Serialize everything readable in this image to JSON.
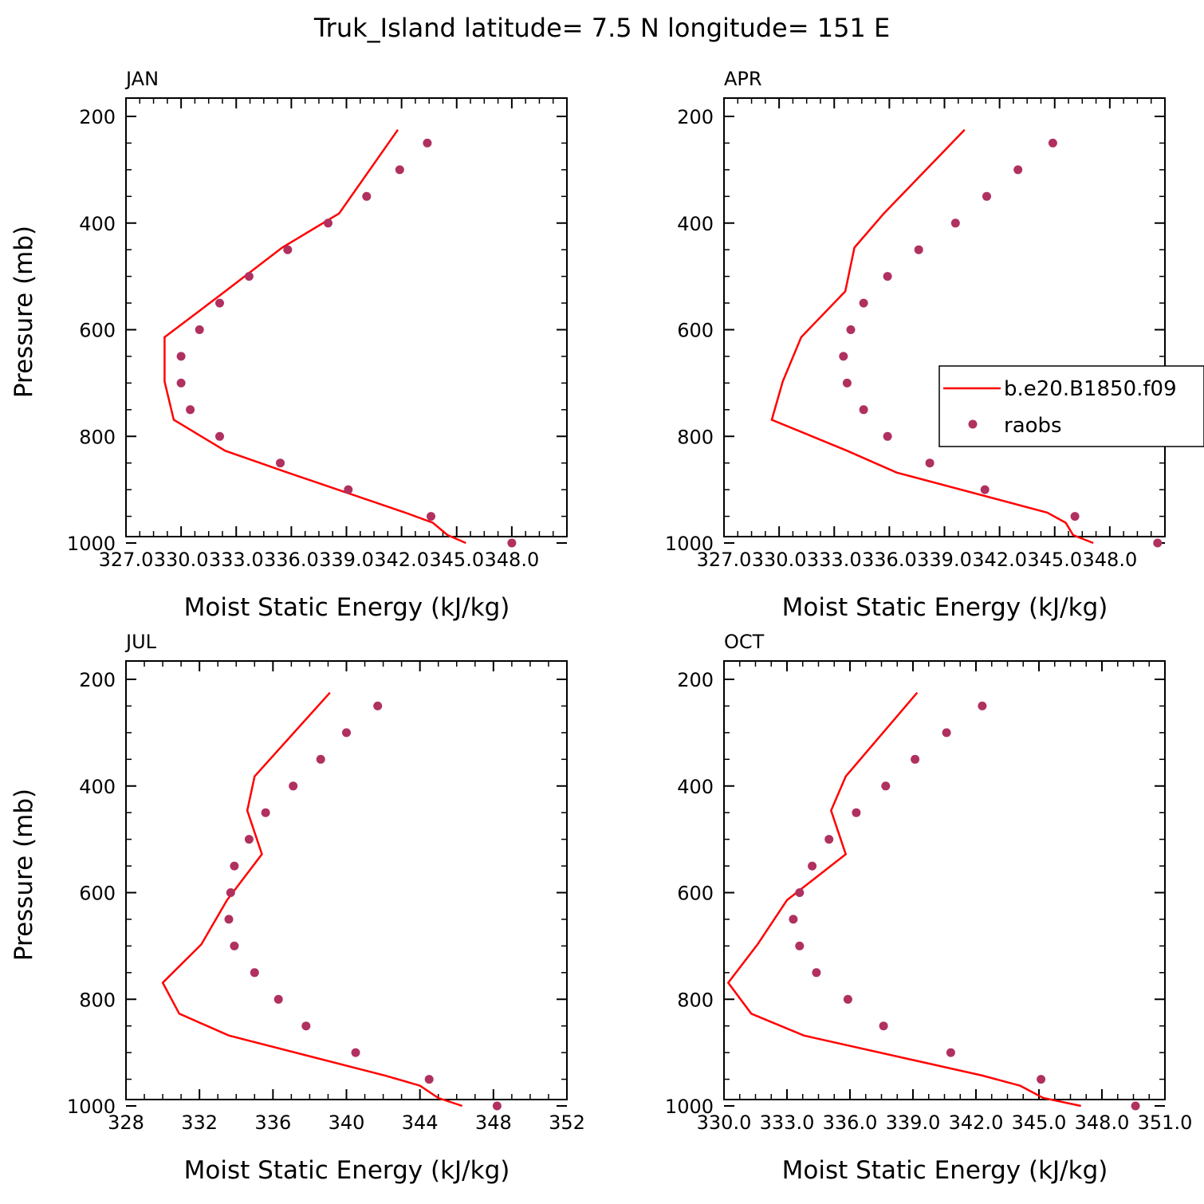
{
  "title": "Truk_Island  latitude= 7.5 N longitude= 151 E",
  "colors": {
    "model": "#ff0000",
    "obs": "#b03060",
    "axes": "#000000"
  },
  "legend": {
    "placement": "right (inside APR panel)",
    "model_label": "b.e20.B1850.f09",
    "obs_label": "raobs"
  },
  "chart_data": [
    {
      "type": "line",
      "title": "JAN",
      "xlabel": "Moist Static Energy (kJ/kg)",
      "ylabel": "Pressure (mb)",
      "xlim": [
        327,
        351
      ],
      "ylim": [
        1000,
        200
      ],
      "y_ticks": [
        "200",
        "400",
        "600",
        "800",
        "1000"
      ],
      "x_ticks": [
        "327.0",
        "330.0",
        "333.0",
        "336.0",
        "339.0",
        "342.0",
        "345.0",
        "348.0"
      ],
      "x_tick_values": [
        327,
        330,
        333,
        336,
        339,
        342,
        345,
        348
      ],
      "series": [
        {
          "name": "b.e20.B1850.f09",
          "kind": "line",
          "x": [
            345.5,
            344.5,
            343.7,
            342.2,
            335.8,
            332.4,
            329.6,
            329.1,
            329.1,
            332.4,
            335.5,
            338.6,
            341.8
          ],
          "y": [
            1000,
            985,
            962,
            943,
            868,
            827,
            769,
            697,
            614,
            528,
            446,
            382,
            225
          ]
        },
        {
          "name": "raobs",
          "kind": "scatter",
          "x": [
            348.0,
            343.6,
            339.1,
            335.4,
            332.1,
            330.5,
            330.0,
            330.0,
            331.0,
            332.1,
            333.7,
            335.8,
            338.0,
            340.1,
            341.9,
            343.4
          ],
          "y": [
            1000,
            950,
            900,
            850,
            800,
            750,
            700,
            650,
            600,
            550,
            500,
            450,
            400,
            350,
            300,
            250
          ]
        }
      ]
    },
    {
      "type": "line",
      "title": "APR",
      "xlabel": "Moist Static Energy (kJ/kg)",
      "ylabel": "",
      "xlim": [
        327,
        351
      ],
      "ylim": [
        1000,
        200
      ],
      "y_ticks": [
        "200",
        "400",
        "600",
        "800",
        "1000"
      ],
      "x_ticks": [
        "327.0",
        "330.0",
        "333.0",
        "336.0",
        "339.0",
        "342.0",
        "345.0",
        "348.0"
      ],
      "x_tick_values": [
        327,
        330,
        333,
        336,
        339,
        342,
        345,
        348
      ],
      "series": [
        {
          "name": "b.e20.B1850.f09",
          "kind": "line",
          "x": [
            347.1,
            346.0,
            345.6,
            344.6,
            336.4,
            333.7,
            329.6,
            330.2,
            331.2,
            333.6,
            334.1,
            335.7,
            340.1
          ],
          "y": [
            1000,
            985,
            962,
            943,
            868,
            827,
            769,
            697,
            614,
            528,
            446,
            382,
            225
          ]
        },
        {
          "name": "raobs",
          "kind": "scatter",
          "x": [
            350.6,
            346.1,
            341.2,
            338.2,
            335.9,
            334.6,
            333.7,
            333.5,
            333.9,
            334.6,
            335.9,
            337.6,
            339.6,
            341.3,
            343.0,
            344.9
          ],
          "y": [
            1000,
            950,
            900,
            850,
            800,
            750,
            700,
            650,
            600,
            550,
            500,
            450,
            400,
            350,
            300,
            250
          ]
        }
      ]
    },
    {
      "type": "line",
      "title": "JUL",
      "xlabel": "Moist Static Energy (kJ/kg)",
      "ylabel": "Pressure (mb)",
      "xlim": [
        328,
        352
      ],
      "ylim": [
        1000,
        200
      ],
      "y_ticks": [
        "200",
        "400",
        "600",
        "800",
        "1000"
      ],
      "x_ticks": [
        "328",
        "332",
        "336",
        "340",
        "344",
        "348",
        "352"
      ],
      "x_tick_values": [
        328,
        332,
        336,
        340,
        344,
        348,
        352
      ],
      "series": [
        {
          "name": "b.e20.B1850.f09",
          "kind": "line",
          "x": [
            346.3,
            345.0,
            344.0,
            342.1,
            333.6,
            330.9,
            330.0,
            332.1,
            333.5,
            335.4,
            334.6,
            335.0,
            339.1
          ],
          "y": [
            1000,
            985,
            962,
            943,
            868,
            827,
            769,
            697,
            614,
            528,
            446,
            382,
            225
          ]
        },
        {
          "name": "raobs",
          "kind": "scatter",
          "x": [
            348.2,
            344.5,
            340.5,
            337.8,
            336.3,
            335.0,
            333.9,
            333.6,
            333.7,
            333.9,
            334.7,
            335.6,
            337.1,
            338.6,
            340.0,
            341.7
          ],
          "y": [
            1000,
            950,
            900,
            850,
            800,
            750,
            700,
            650,
            600,
            550,
            500,
            450,
            400,
            350,
            300,
            250
          ]
        }
      ]
    },
    {
      "type": "line",
      "title": "OCT",
      "xlabel": "Moist Static Energy (kJ/kg)",
      "ylabel": "",
      "xlim": [
        330,
        351
      ],
      "ylim": [
        1000,
        200
      ],
      "y_ticks": [
        "200",
        "400",
        "600",
        "800",
        "1000"
      ],
      "x_ticks": [
        "330.0",
        "333.0",
        "336.0",
        "339.0",
        "342.0",
        "345.0",
        "348.0",
        "351.0"
      ],
      "x_tick_values": [
        330,
        333,
        336,
        339,
        342,
        345,
        348,
        351
      ],
      "series": [
        {
          "name": "b.e20.B1850.f09",
          "kind": "line",
          "x": [
            347.0,
            345.2,
            344.1,
            342.3,
            333.8,
            331.3,
            330.2,
            331.6,
            333.0,
            335.8,
            335.1,
            335.8,
            339.2
          ],
          "y": [
            1000,
            985,
            962,
            943,
            868,
            827,
            769,
            697,
            614,
            528,
            446,
            382,
            225
          ]
        },
        {
          "name": "raobs",
          "kind": "scatter",
          "x": [
            349.6,
            345.1,
            340.8,
            337.6,
            335.9,
            334.4,
            333.6,
            333.3,
            333.6,
            334.2,
            335.0,
            336.3,
            337.7,
            339.1,
            340.6,
            342.3
          ],
          "y": [
            1000,
            950,
            900,
            850,
            800,
            750,
            700,
            650,
            600,
            550,
            500,
            450,
            400,
            350,
            300,
            250
          ]
        }
      ]
    }
  ]
}
